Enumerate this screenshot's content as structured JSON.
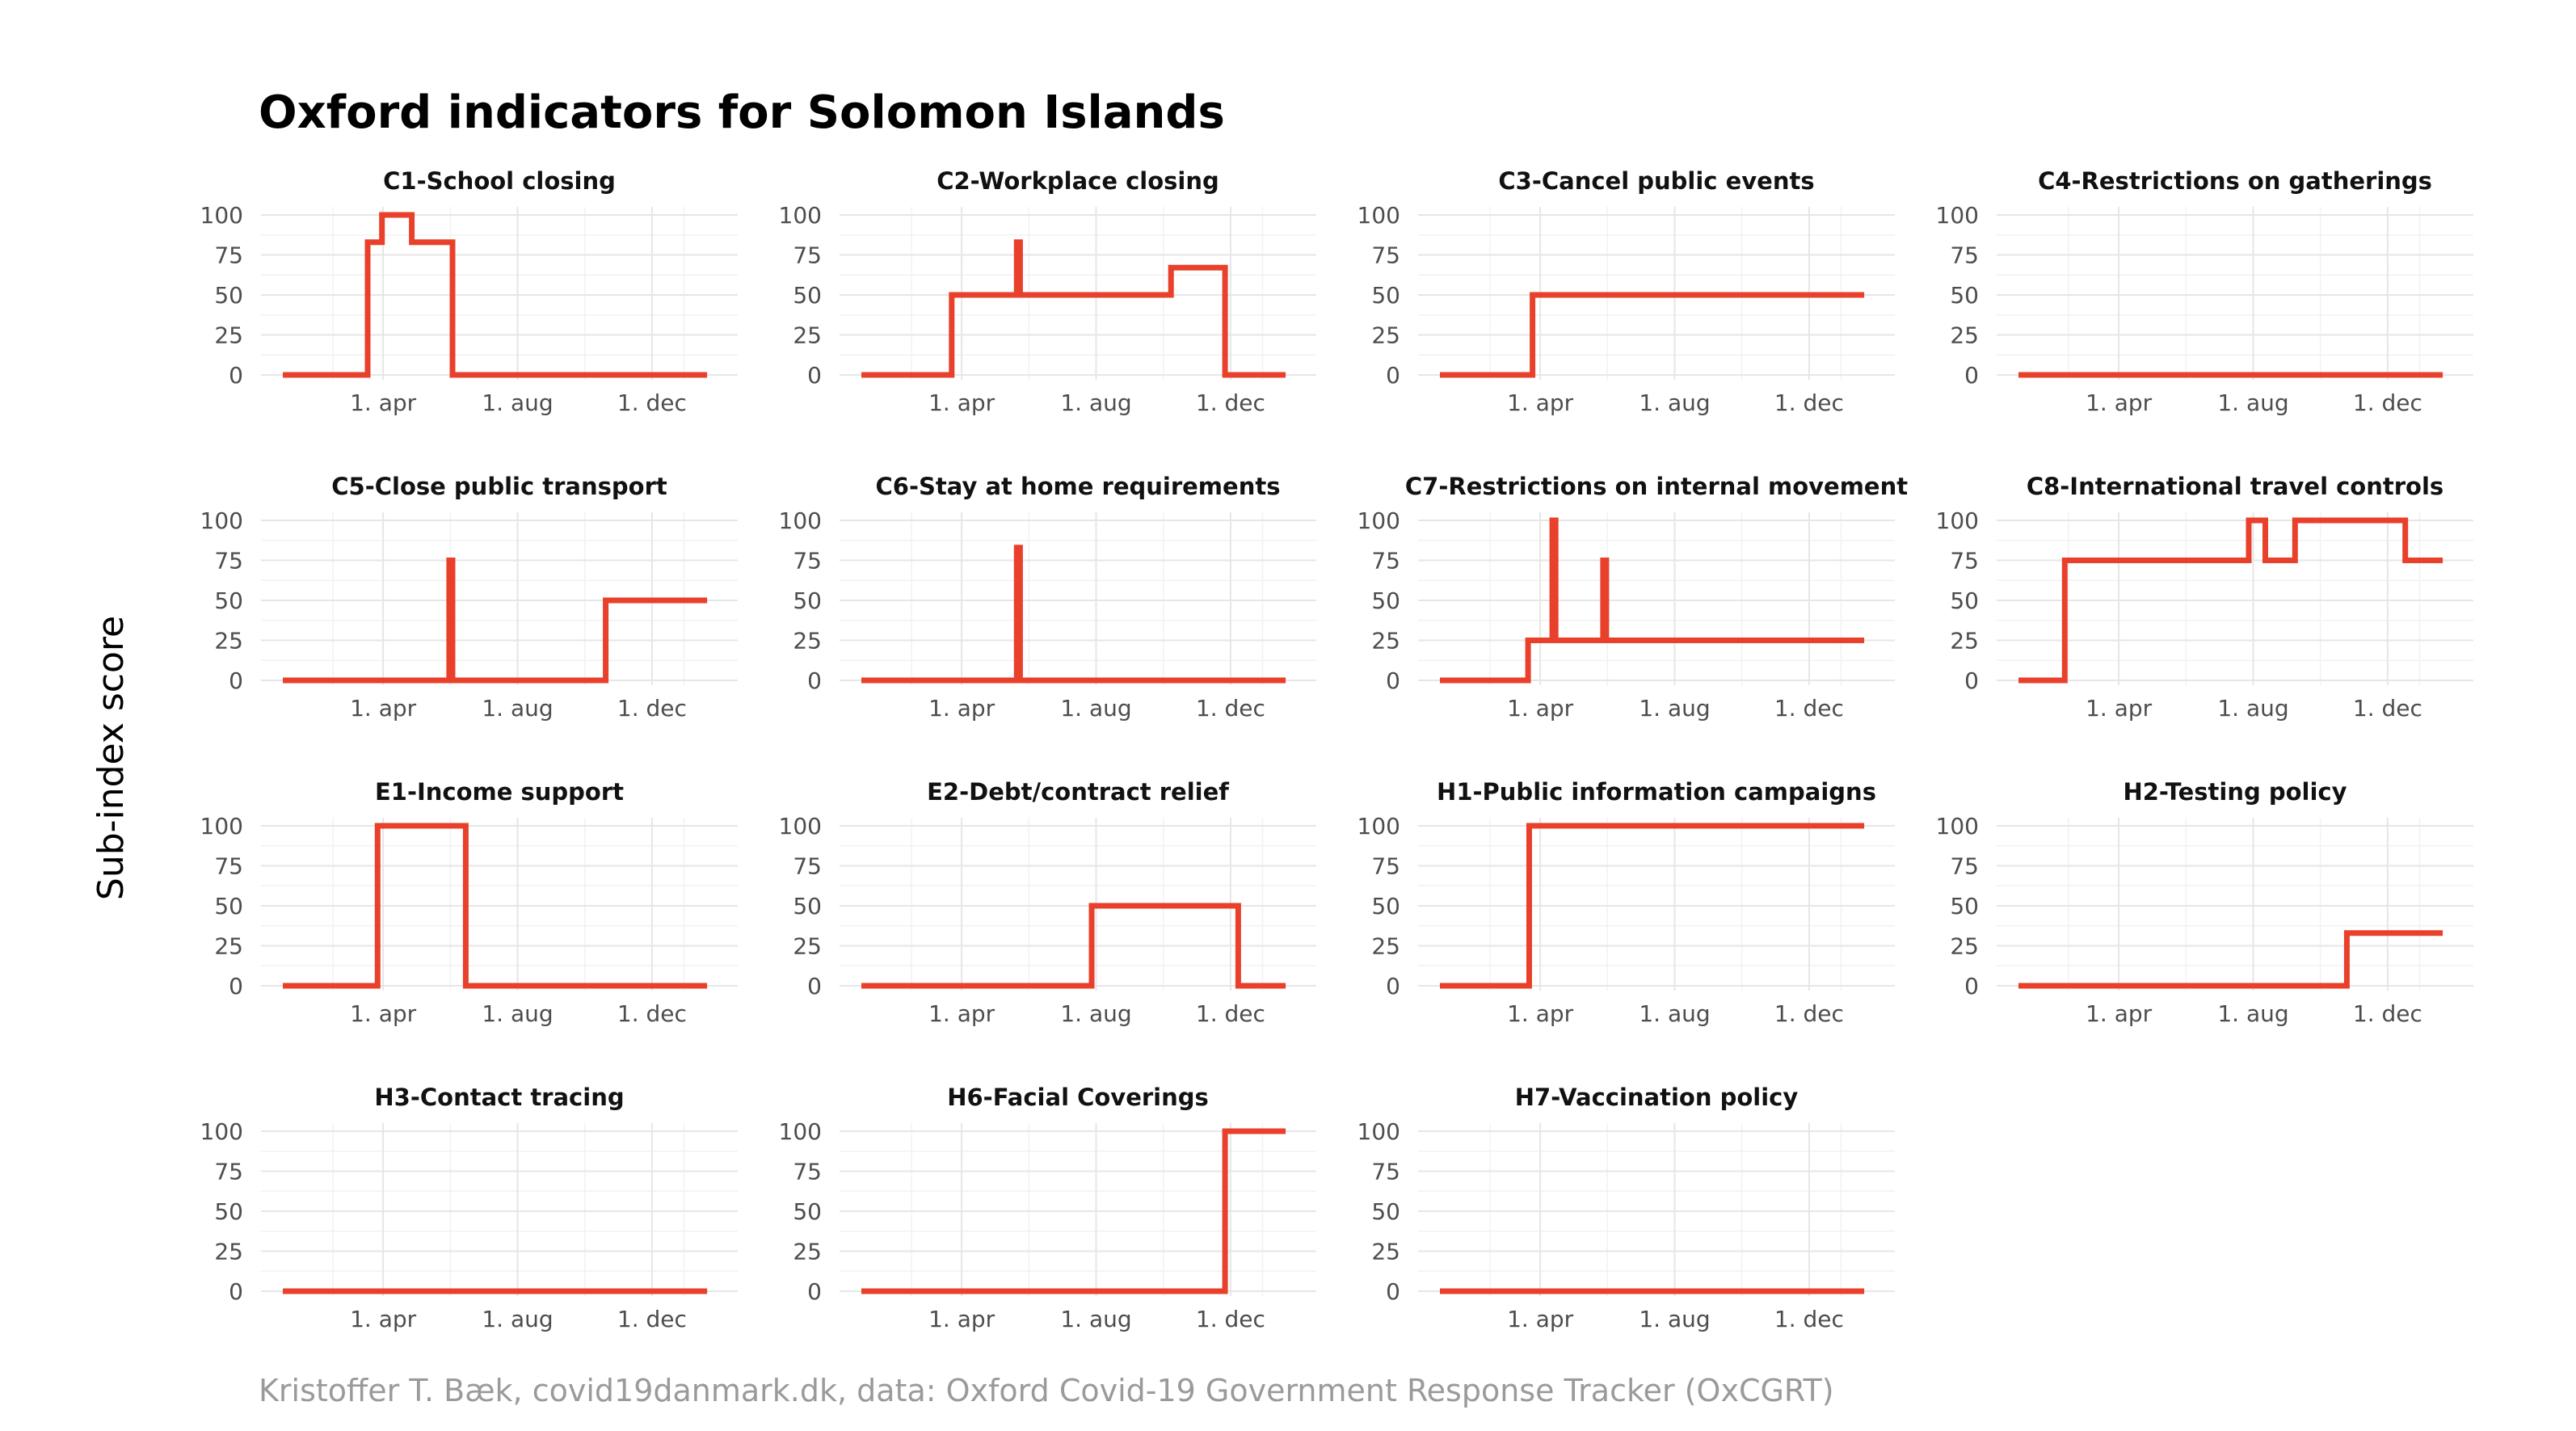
{
  "colors": {
    "line": "#e8402a",
    "grid": "#e6e6e6",
    "caption": "#9a9a9a"
  },
  "chart_data": {
    "type": "line",
    "title": "Oxford indicators for Solomon Islands",
    "ylabel": "Sub-index score",
    "caption": "Kristoffer T. Bæk, covid19danmark.dk, data: Oxford Covid-19 Government Response Tracker (OxCGRT)",
    "ylim": [
      0,
      100
    ],
    "yticks": [
      0,
      25,
      50,
      75,
      100
    ],
    "xlim": [
      "2020-01-01",
      "2021-01-28"
    ],
    "xticks": [
      {
        "date": "2020-04-01",
        "label": "1. apr"
      },
      {
        "date": "2020-08-01",
        "label": "1. aug"
      },
      {
        "date": "2020-12-01",
        "label": "1. dec"
      }
    ],
    "grid": true,
    "layout": {
      "columns": 4
    },
    "panels": [
      {
        "title": "C1-School closing",
        "series": [
          {
            "date": "2020-01-01",
            "value": 0
          },
          {
            "date": "2020-03-18",
            "value": 83
          },
          {
            "date": "2020-03-31",
            "value": 100
          },
          {
            "date": "2020-04-27",
            "value": 83
          },
          {
            "date": "2020-06-03",
            "value": 0
          },
          {
            "date": "2021-01-20",
            "value": 0
          }
        ]
      },
      {
        "title": "C2-Workplace closing",
        "series": [
          {
            "date": "2020-01-01",
            "value": 0
          },
          {
            "date": "2020-03-23",
            "value": 50
          },
          {
            "date": "2020-05-21",
            "value": 83
          },
          {
            "date": "2020-05-24",
            "value": 50
          },
          {
            "date": "2020-10-08",
            "value": 67
          },
          {
            "date": "2020-11-26",
            "value": 0
          },
          {
            "date": "2021-01-20",
            "value": 0
          }
        ]
      },
      {
        "title": "C3-Cancel public events",
        "series": [
          {
            "date": "2020-01-01",
            "value": 0
          },
          {
            "date": "2020-03-25",
            "value": 50
          },
          {
            "date": "2021-01-20",
            "value": 50
          }
        ]
      },
      {
        "title": "C4-Restrictions on gatherings",
        "series": [
          {
            "date": "2020-01-01",
            "value": 0
          },
          {
            "date": "2021-01-20",
            "value": 0
          }
        ]
      },
      {
        "title": "C5-Close public transport",
        "series": [
          {
            "date": "2020-01-01",
            "value": 0
          },
          {
            "date": "2020-05-31",
            "value": 75
          },
          {
            "date": "2020-06-03",
            "value": 0
          },
          {
            "date": "2020-10-20",
            "value": 50
          },
          {
            "date": "2021-01-20",
            "value": 50
          }
        ]
      },
      {
        "title": "C6-Stay at home requirements",
        "series": [
          {
            "date": "2020-01-01",
            "value": 0
          },
          {
            "date": "2020-05-21",
            "value": 83
          },
          {
            "date": "2020-05-24",
            "value": 0
          },
          {
            "date": "2021-01-20",
            "value": 0
          }
        ]
      },
      {
        "title": "C7-Restrictions on internal movement",
        "series": [
          {
            "date": "2020-01-01",
            "value": 0
          },
          {
            "date": "2020-03-21",
            "value": 25
          },
          {
            "date": "2020-04-12",
            "value": 100
          },
          {
            "date": "2020-04-15",
            "value": 25
          },
          {
            "date": "2020-05-28",
            "value": 75
          },
          {
            "date": "2020-05-31",
            "value": 25
          },
          {
            "date": "2021-01-20",
            "value": 25
          }
        ]
      },
      {
        "title": "C8-International travel controls",
        "series": [
          {
            "date": "2020-01-01",
            "value": 0
          },
          {
            "date": "2020-02-12",
            "value": 75
          },
          {
            "date": "2020-07-28",
            "value": 100
          },
          {
            "date": "2020-08-12",
            "value": 75
          },
          {
            "date": "2020-09-08",
            "value": 100
          },
          {
            "date": "2020-12-17",
            "value": 75
          },
          {
            "date": "2021-01-20",
            "value": 75
          }
        ]
      },
      {
        "title": "E1-Income support",
        "series": [
          {
            "date": "2020-01-01",
            "value": 0
          },
          {
            "date": "2020-03-27",
            "value": 100
          },
          {
            "date": "2020-06-15",
            "value": 0
          },
          {
            "date": "2021-01-20",
            "value": 0
          }
        ]
      },
      {
        "title": "E2-Debt/contract relief",
        "series": [
          {
            "date": "2020-01-01",
            "value": 0
          },
          {
            "date": "2020-07-28",
            "value": 50
          },
          {
            "date": "2020-12-08",
            "value": 0
          },
          {
            "date": "2021-01-20",
            "value": 0
          }
        ]
      },
      {
        "title": "H1-Public information campaigns",
        "series": [
          {
            "date": "2020-01-01",
            "value": 0
          },
          {
            "date": "2020-03-22",
            "value": 100
          },
          {
            "date": "2021-01-20",
            "value": 100
          }
        ]
      },
      {
        "title": "H2-Testing policy",
        "series": [
          {
            "date": "2020-01-01",
            "value": 0
          },
          {
            "date": "2020-10-25",
            "value": 33
          },
          {
            "date": "2021-01-20",
            "value": 33
          }
        ]
      },
      {
        "title": "H3-Contact tracing",
        "series": [
          {
            "date": "2020-01-01",
            "value": 0
          },
          {
            "date": "2021-01-20",
            "value": 0
          }
        ]
      },
      {
        "title": "H6-Facial Coverings",
        "series": [
          {
            "date": "2020-01-01",
            "value": 0
          },
          {
            "date": "2020-11-26",
            "value": 100
          },
          {
            "date": "2021-01-20",
            "value": 100
          }
        ]
      },
      {
        "title": "H7-Vaccination policy",
        "series": [
          {
            "date": "2020-01-01",
            "value": 0
          },
          {
            "date": "2021-01-20",
            "value": 0
          }
        ]
      }
    ]
  }
}
